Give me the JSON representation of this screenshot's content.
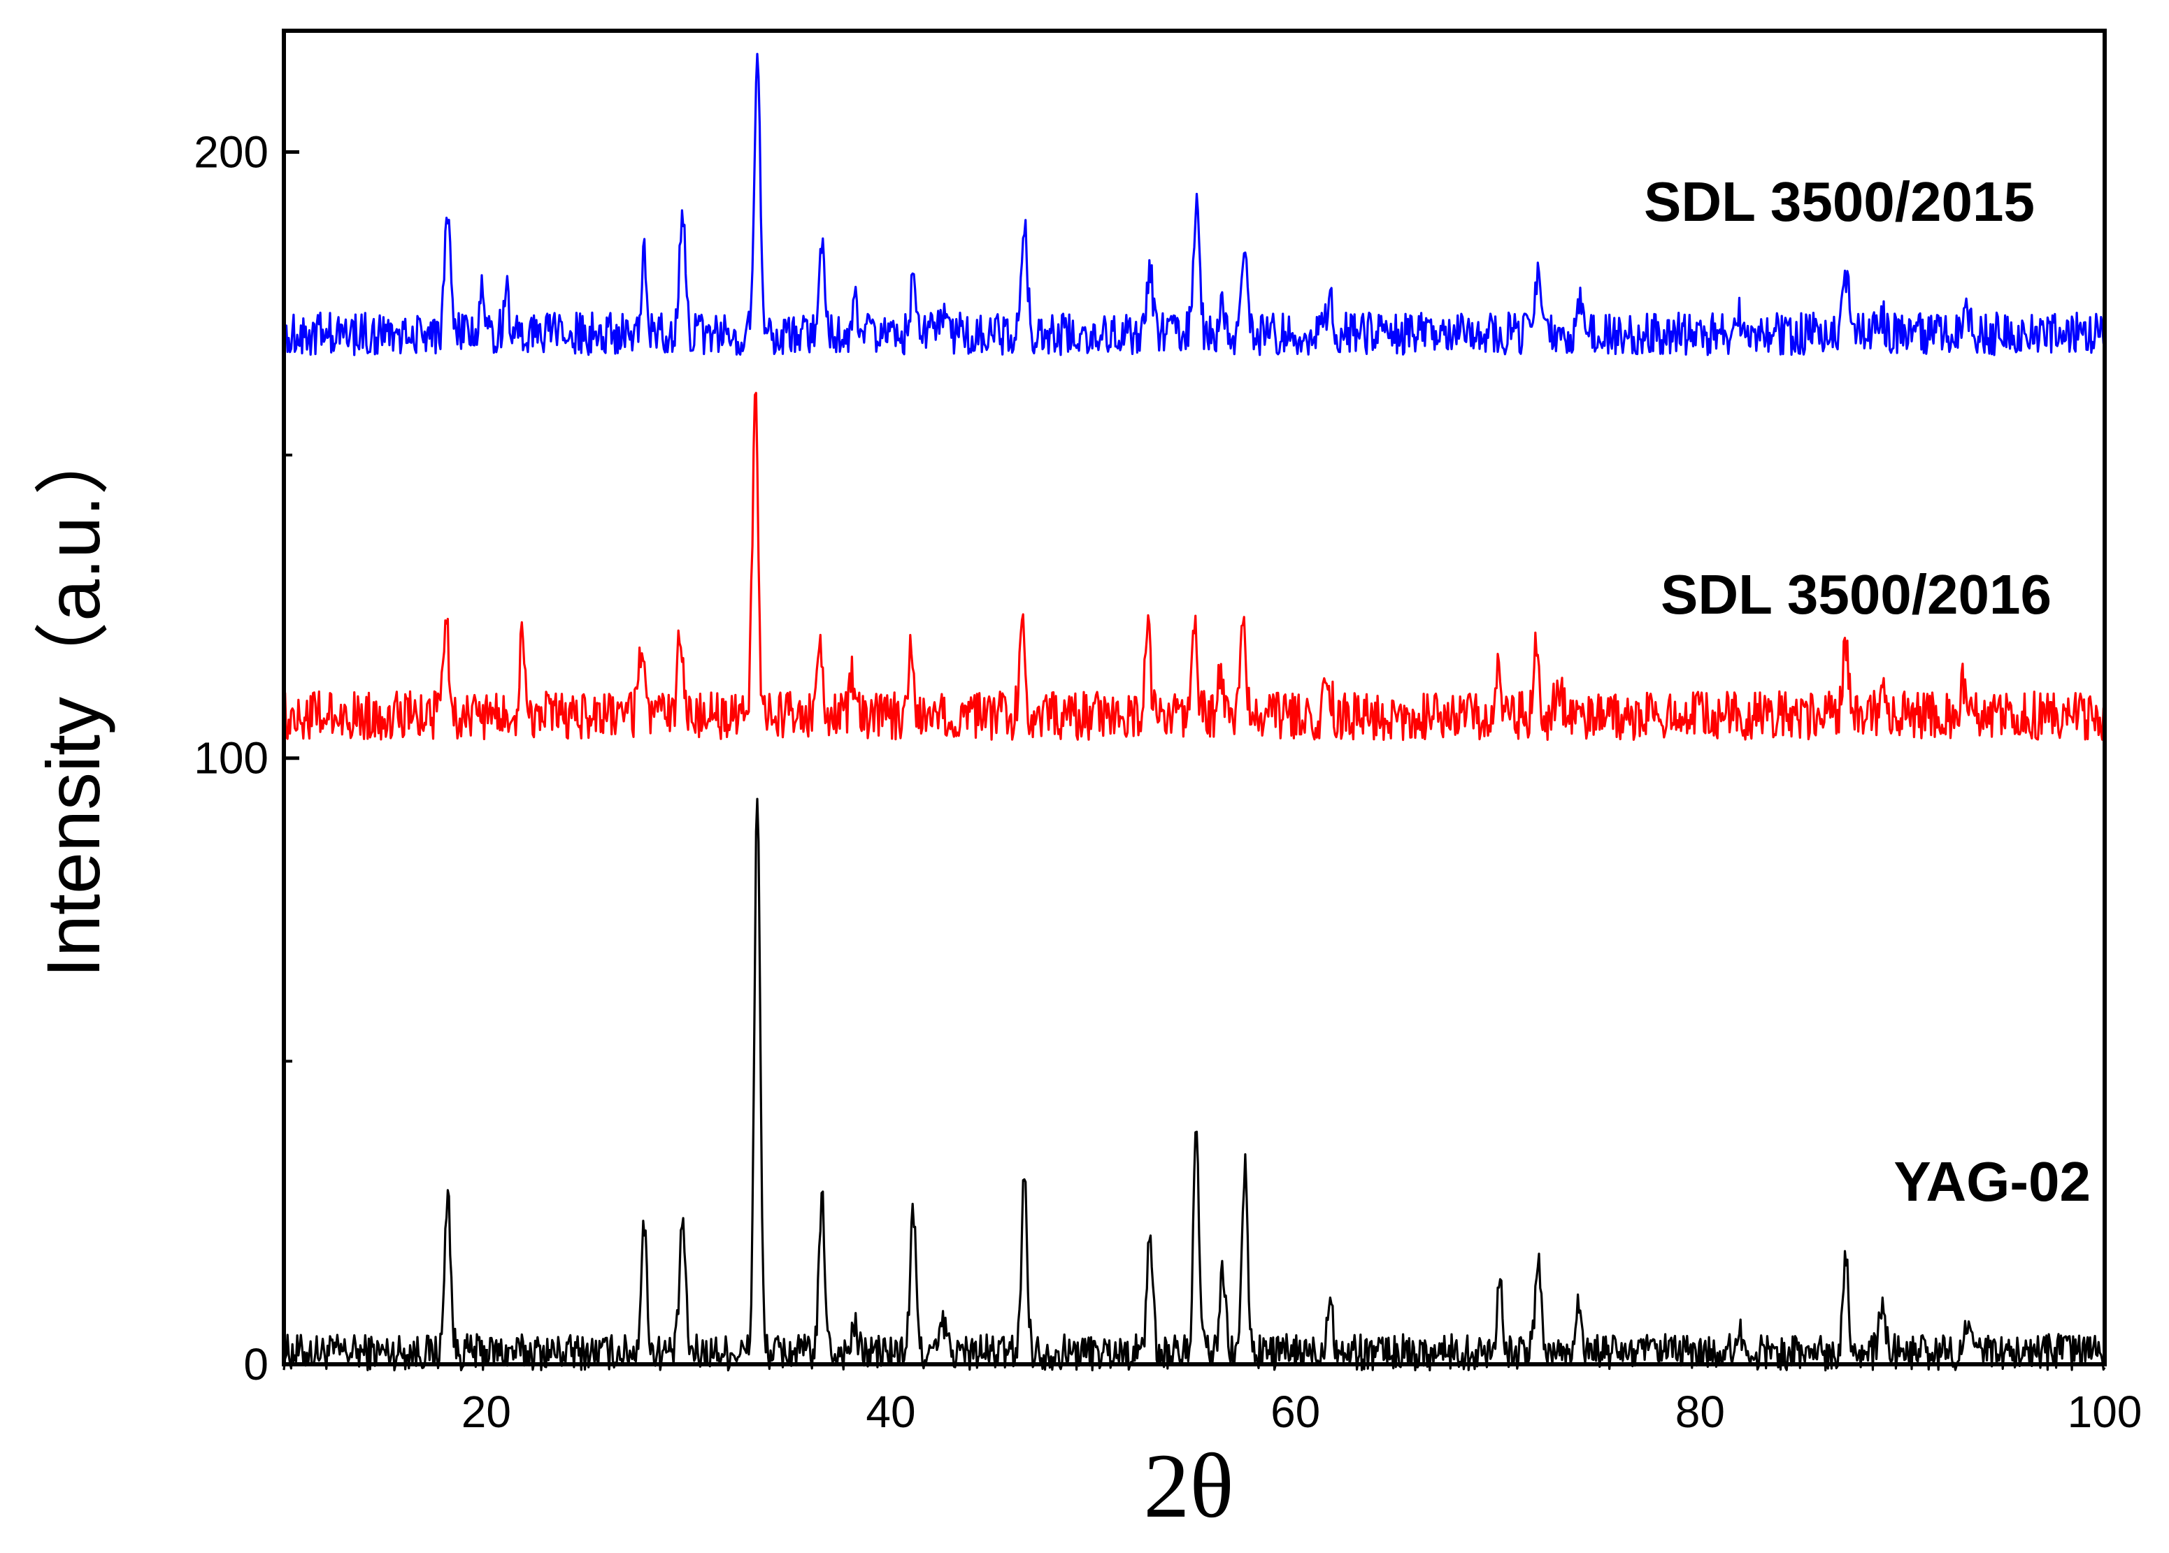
{
  "chart_data": {
    "type": "line",
    "title": "",
    "xlabel": "2θ",
    "ylabel": "Intensity（a.u.）",
    "xlim": [
      10,
      100
    ],
    "ylim": [
      0,
      220
    ],
    "x_ticks": [
      20,
      40,
      60,
      80,
      100
    ],
    "x_tick_labels": [
      "20",
      "40",
      "60",
      "80",
      "100"
    ],
    "y_ticks": [
      0,
      100,
      200
    ],
    "y_tick_labels": [
      "0",
      "100",
      "200"
    ],
    "y_minor_ticks": [
      50,
      150
    ],
    "grid": false,
    "legend": "inline labels at right",
    "series": [
      {
        "name": "YAG-02",
        "label": "YAG-02",
        "color": "#000000",
        "baseline": 2,
        "noise": 3,
        "peaks": [
          {
            "x": 18.1,
            "y": 29
          },
          {
            "x": 27.8,
            "y": 23
          },
          {
            "x": 29.7,
            "y": 24
          },
          {
            "x": 33.4,
            "y": 95
          },
          {
            "x": 36.6,
            "y": 27
          },
          {
            "x": 38.2,
            "y": 6
          },
          {
            "x": 41.1,
            "y": 25
          },
          {
            "x": 42.6,
            "y": 7
          },
          {
            "x": 46.6,
            "y": 31
          },
          {
            "x": 52.8,
            "y": 22
          },
          {
            "x": 55.1,
            "y": 37
          },
          {
            "x": 56.4,
            "y": 15
          },
          {
            "x": 57.5,
            "y": 32
          },
          {
            "x": 61.7,
            "y": 12
          },
          {
            "x": 70.1,
            "y": 14
          },
          {
            "x": 72.0,
            "y": 18
          },
          {
            "x": 74.0,
            "y": 11
          },
          {
            "x": 81.9,
            "y": 6
          },
          {
            "x": 87.2,
            "y": 18
          },
          {
            "x": 89.0,
            "y": 9
          },
          {
            "x": 93.2,
            "y": 6
          }
        ]
      },
      {
        "name": "SDL 3500/2016",
        "label": "SDL 3500/2016",
        "color": "#ff0000",
        "baseline": 107,
        "noise": 4,
        "peaks": [
          {
            "x": 18.0,
            "y": 124
          },
          {
            "x": 21.8,
            "y": 120
          },
          {
            "x": 27.7,
            "y": 119
          },
          {
            "x": 29.6,
            "y": 122
          },
          {
            "x": 33.3,
            "y": 159
          },
          {
            "x": 36.5,
            "y": 117
          },
          {
            "x": 38.1,
            "y": 113
          },
          {
            "x": 41.0,
            "y": 119
          },
          {
            "x": 46.5,
            "y": 124
          },
          {
            "x": 52.7,
            "y": 121
          },
          {
            "x": 55.0,
            "y": 124
          },
          {
            "x": 56.3,
            "y": 113
          },
          {
            "x": 57.4,
            "y": 125
          },
          {
            "x": 61.6,
            "y": 114
          },
          {
            "x": 70.0,
            "y": 114
          },
          {
            "x": 71.9,
            "y": 119
          },
          {
            "x": 73.0,
            "y": 113
          },
          {
            "x": 87.2,
            "y": 119
          },
          {
            "x": 89.0,
            "y": 112
          },
          {
            "x": 93.0,
            "y": 112
          }
        ]
      },
      {
        "name": "SDL 3500/2015",
        "label": "SDL 3500/2015",
        "color": "#0000ff",
        "baseline": 170,
        "noise": 3.5,
        "peaks": [
          {
            "x": 18.1,
            "y": 190
          },
          {
            "x": 19.8,
            "y": 177
          },
          {
            "x": 21.0,
            "y": 177
          },
          {
            "x": 27.8,
            "y": 183
          },
          {
            "x": 29.7,
            "y": 189
          },
          {
            "x": 33.4,
            "y": 218
          },
          {
            "x": 36.6,
            "y": 186
          },
          {
            "x": 38.2,
            "y": 175
          },
          {
            "x": 41.1,
            "y": 179
          },
          {
            "x": 42.6,
            "y": 174
          },
          {
            "x": 46.6,
            "y": 189
          },
          {
            "x": 52.8,
            "y": 182
          },
          {
            "x": 55.1,
            "y": 191
          },
          {
            "x": 56.4,
            "y": 175
          },
          {
            "x": 57.5,
            "y": 182
          },
          {
            "x": 61.7,
            "y": 176
          },
          {
            "x": 72.0,
            "y": 180
          },
          {
            "x": 74.0,
            "y": 175
          },
          {
            "x": 81.9,
            "y": 174
          },
          {
            "x": 87.2,
            "y": 180
          },
          {
            "x": 89.0,
            "y": 173
          },
          {
            "x": 93.2,
            "y": 174
          }
        ]
      }
    ]
  }
}
